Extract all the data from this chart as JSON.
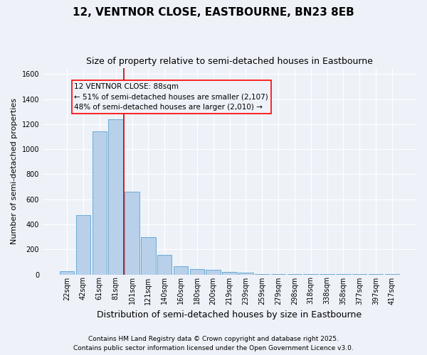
{
  "title1": "12, VENTNOR CLOSE, EASTBOURNE, BN23 8EB",
  "title2": "Size of property relative to semi-detached houses in Eastbourne",
  "categories": [
    "22sqm",
    "42sqm",
    "61sqm",
    "81sqm",
    "101sqm",
    "121sqm",
    "140sqm",
    "160sqm",
    "180sqm",
    "200sqm",
    "219sqm",
    "239sqm",
    "259sqm",
    "279sqm",
    "298sqm",
    "318sqm",
    "338sqm",
    "358sqm",
    "377sqm",
    "397sqm",
    "417sqm"
  ],
  "values": [
    25,
    475,
    1145,
    1240,
    660,
    300,
    155,
    65,
    40,
    35,
    20,
    12,
    5,
    5,
    3,
    2,
    1,
    1,
    1,
    1,
    5
  ],
  "bar_color": "#b8d0ea",
  "bar_edge_color": "#6aaad4",
  "vline_x_index": 3.5,
  "vline_color": "#cc0000",
  "annotation_title": "12 VENTNOR CLOSE: 88sqm",
  "annotation_line1": "← 51% of semi-detached houses are smaller (2,107)",
  "annotation_line2": "48% of semi-detached houses are larger (2,010) →",
  "annotation_box_color": "red",
  "ylabel": "Number of semi-detached properties",
  "xlabel": "Distribution of semi-detached houses by size in Eastbourne",
  "footnote1": "Contains HM Land Registry data © Crown copyright and database right 2025.",
  "footnote2": "Contains public sector information licensed under the Open Government Licence v3.0.",
  "ylim": [
    0,
    1650
  ],
  "background_color": "#eef2f8",
  "grid_color": "#ffffff",
  "title1_fontsize": 11,
  "title2_fontsize": 9,
  "ylabel_fontsize": 8,
  "xlabel_fontsize": 9,
  "tick_fontsize": 7,
  "annot_fontsize": 7.5,
  "footnote_fontsize": 6.5
}
